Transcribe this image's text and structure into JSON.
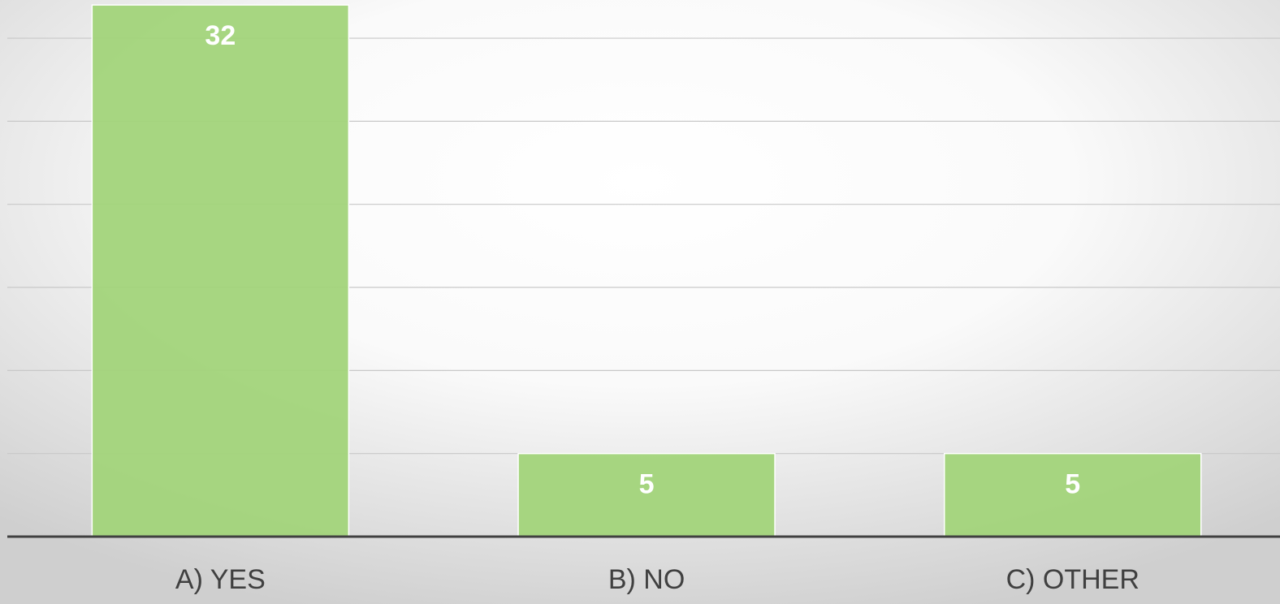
{
  "chart_data": {
    "type": "bar",
    "categories": [
      "A) YES",
      "B) NO",
      "C) OTHER"
    ],
    "values": [
      32,
      5,
      5
    ],
    "color": "#a2d47a",
    "ylim": [
      0,
      32.3
    ],
    "yticks": [
      0,
      5,
      10,
      15,
      20,
      25,
      30
    ],
    "grid": true
  }
}
